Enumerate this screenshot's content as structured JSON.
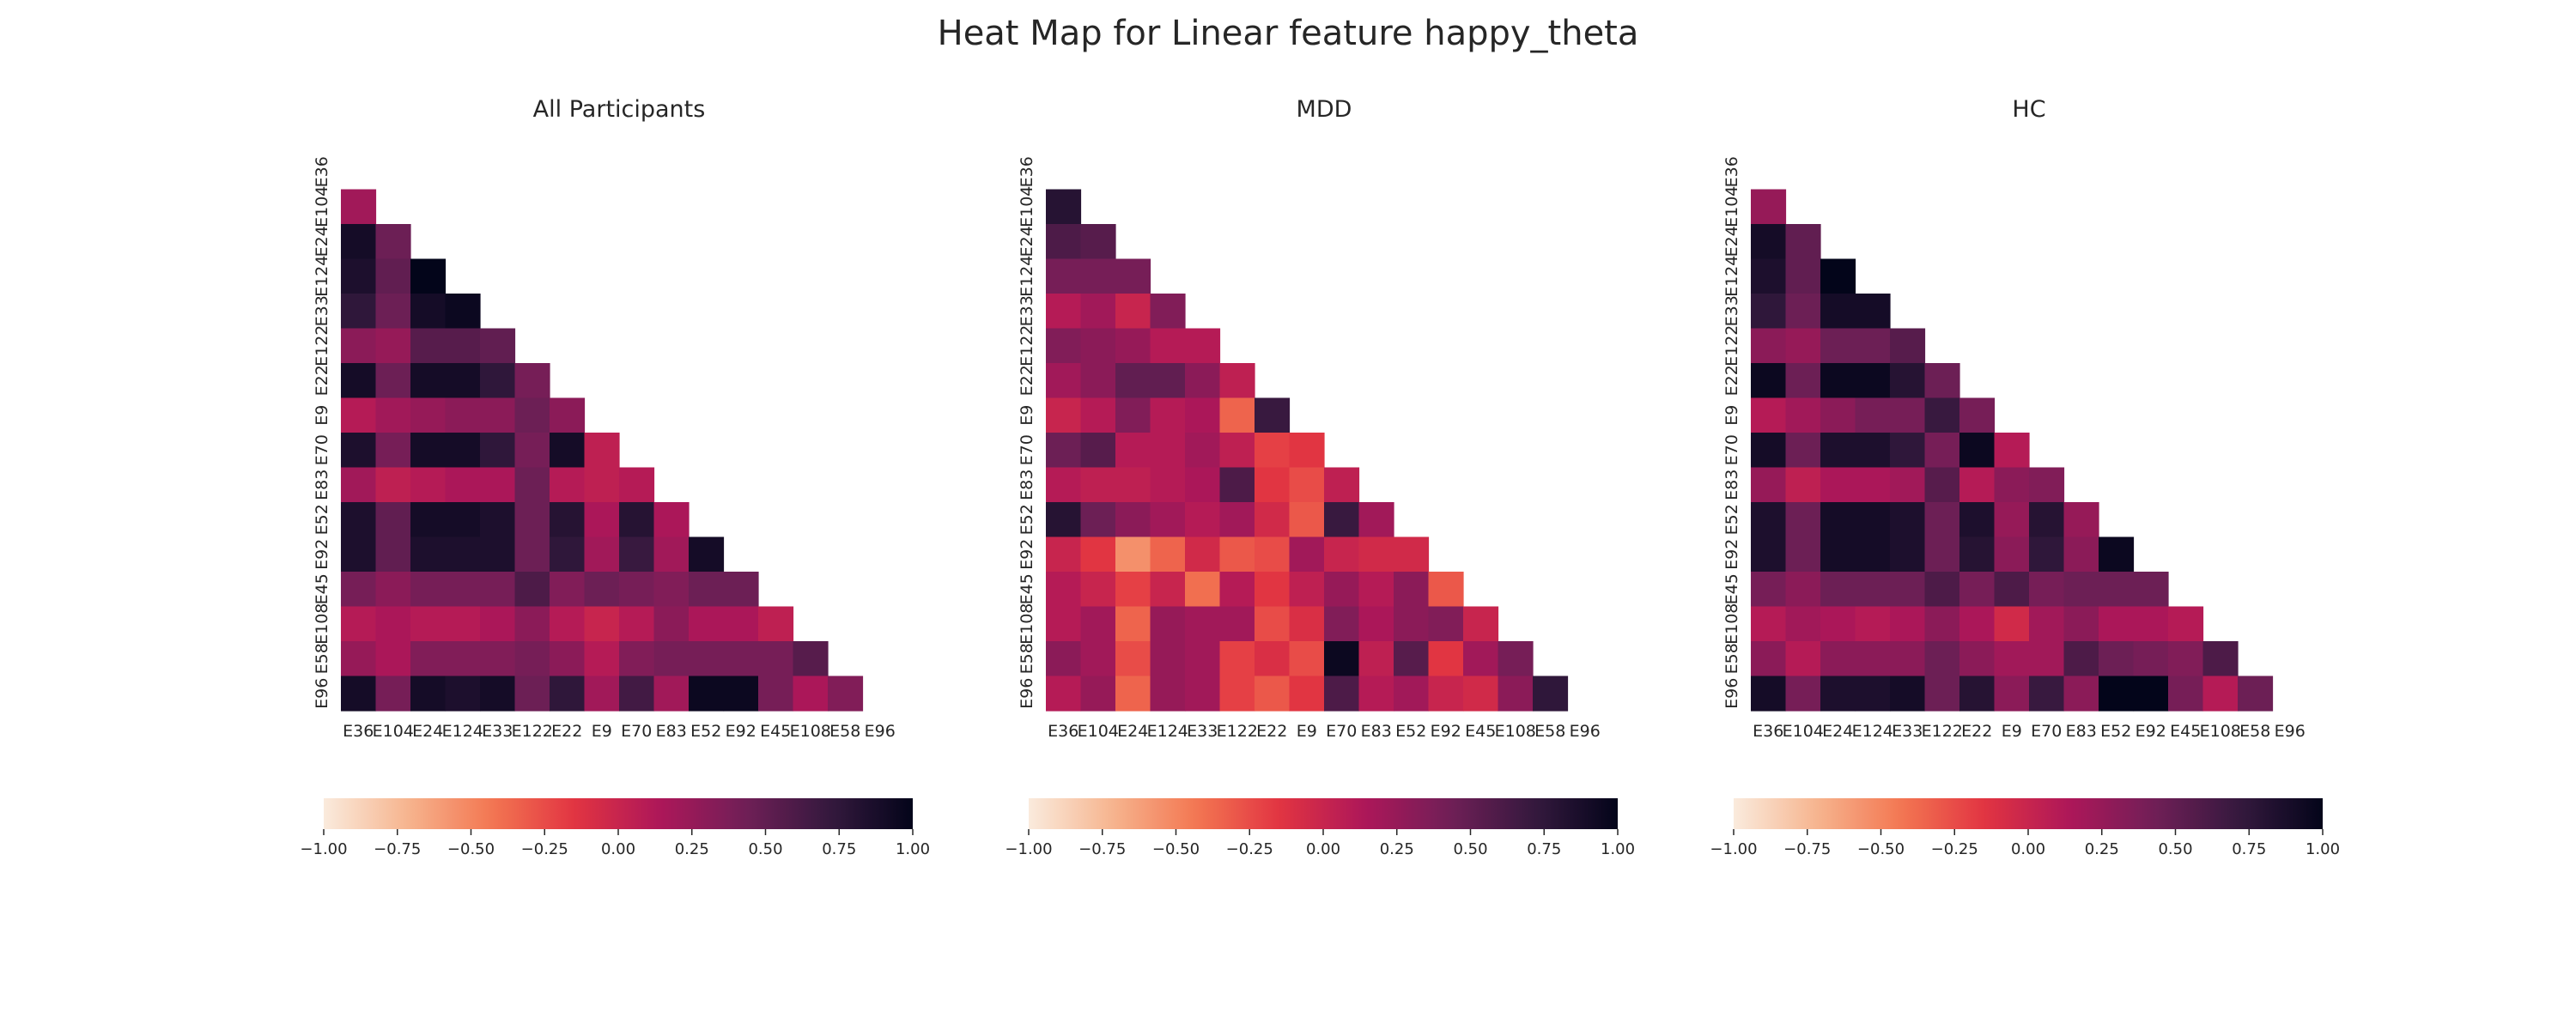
{
  "title": "Heat Map for Linear feature happy_theta",
  "colormap": {
    "name": "rocket_r",
    "stops": [
      "#faebdd",
      "#f6b48e",
      "#f37651",
      "#e13342",
      "#ad1759",
      "#701f57",
      "#35193e",
      "#03051a"
    ]
  },
  "chart_data": [
    {
      "type": "heatmap",
      "title": "All Participants",
      "labels": [
        "E36",
        "E104",
        "E24",
        "E124",
        "E33",
        "E122",
        "E22",
        "E9",
        "E70",
        "E83",
        "E52",
        "E92",
        "E45",
        "E108",
        "E58",
        "E96"
      ],
      "colorbar": {
        "vmin": -1,
        "vmax": 1,
        "ticks": [
          "−1.00",
          "−0.75",
          "−0.50",
          "−0.25",
          "0.00",
          "0.25",
          "0.50",
          "0.75",
          "1.00"
        ]
      },
      "matrix": [
        [],
        [
          0.2
        ],
        [
          0.9,
          0.45
        ],
        [
          0.85,
          0.5,
          1.0
        ],
        [
          0.75,
          0.45,
          0.9,
          0.95
        ],
        [
          0.3,
          0.25,
          0.55,
          0.55,
          0.5
        ],
        [
          0.9,
          0.45,
          0.9,
          0.9,
          0.75,
          0.4
        ],
        [
          0.1,
          0.2,
          0.25,
          0.3,
          0.3,
          0.45,
          0.3
        ],
        [
          0.85,
          0.4,
          0.9,
          0.9,
          0.75,
          0.4,
          0.9,
          0.05
        ],
        [
          0.2,
          0.05,
          0.1,
          0.15,
          0.15,
          0.45,
          0.1,
          0.05,
          0.1
        ],
        [
          0.85,
          0.5,
          0.9,
          0.9,
          0.85,
          0.45,
          0.8,
          0.15,
          0.8,
          0.15
        ],
        [
          0.85,
          0.5,
          0.85,
          0.85,
          0.85,
          0.45,
          0.75,
          0.2,
          0.7,
          0.2,
          0.9
        ],
        [
          0.4,
          0.3,
          0.4,
          0.4,
          0.4,
          0.6,
          0.35,
          0.45,
          0.4,
          0.35,
          0.45,
          0.45
        ],
        [
          0.1,
          0.15,
          0.1,
          0.1,
          0.15,
          0.3,
          0.1,
          0.0,
          0.1,
          0.3,
          0.15,
          0.15,
          0.05
        ],
        [
          0.25,
          0.15,
          0.35,
          0.35,
          0.35,
          0.4,
          0.3,
          0.1,
          0.35,
          0.4,
          0.4,
          0.4,
          0.4,
          0.55
        ],
        [
          0.9,
          0.4,
          0.9,
          0.85,
          0.9,
          0.45,
          0.75,
          0.2,
          0.65,
          0.2,
          0.95,
          0.95,
          0.4,
          0.15,
          0.35
        ]
      ]
    },
    {
      "type": "heatmap",
      "title": "MDD",
      "labels": [
        "E36",
        "E104",
        "E24",
        "E124",
        "E33",
        "E122",
        "E22",
        "E9",
        "E70",
        "E83",
        "E52",
        "E92",
        "E45",
        "E108",
        "E58",
        "E96"
      ],
      "colorbar": {
        "vmin": -1,
        "vmax": 1,
        "ticks": [
          "−1.00",
          "−0.75",
          "−0.50",
          "−0.25",
          "0.00",
          "0.25",
          "0.50",
          "0.75",
          "1.00"
        ]
      },
      "matrix": [
        [],
        [
          0.8
        ],
        [
          0.6,
          0.55
        ],
        [
          0.4,
          0.4,
          0.4
        ],
        [
          0.1,
          0.2,
          0.0,
          0.35
        ],
        [
          0.35,
          0.3,
          0.25,
          0.1,
          0.1
        ],
        [
          0.2,
          0.3,
          0.5,
          0.5,
          0.3,
          0.05
        ],
        [
          0.0,
          0.1,
          0.35,
          0.1,
          0.15,
          -0.35,
          0.7
        ],
        [
          0.45,
          0.55,
          0.1,
          0.1,
          0.2,
          0.05,
          -0.2,
          -0.15
        ],
        [
          0.1,
          0.05,
          0.05,
          0.1,
          0.15,
          0.6,
          -0.15,
          -0.25,
          0.05
        ],
        [
          0.8,
          0.45,
          0.3,
          0.2,
          0.1,
          0.2,
          -0.05,
          -0.3,
          0.7,
          0.2
        ],
        [
          0.0,
          -0.15,
          -0.55,
          -0.35,
          -0.05,
          -0.3,
          -0.25,
          0.2,
          0.0,
          -0.05,
          -0.05
        ],
        [
          0.1,
          0.0,
          -0.2,
          0.0,
          -0.4,
          0.1,
          -0.15,
          0.05,
          0.25,
          0.1,
          0.3,
          -0.3
        ],
        [
          0.1,
          0.2,
          -0.35,
          0.25,
          0.2,
          0.2,
          -0.25,
          -0.1,
          0.35,
          0.15,
          0.3,
          0.35,
          0.0
        ],
        [
          0.3,
          0.2,
          -0.25,
          0.25,
          0.2,
          -0.2,
          -0.1,
          -0.25,
          0.95,
          0.05,
          0.55,
          -0.15,
          0.2,
          0.4
        ],
        [
          0.1,
          0.25,
          -0.35,
          0.25,
          0.2,
          -0.2,
          -0.3,
          -0.15,
          0.6,
          0.1,
          0.2,
          0.0,
          -0.05,
          0.3,
          0.75
        ]
      ]
    },
    {
      "type": "heatmap",
      "title": "HC",
      "labels": [
        "E36",
        "E104",
        "E24",
        "E124",
        "E33",
        "E122",
        "E22",
        "E9",
        "E70",
        "E83",
        "E52",
        "E92",
        "E45",
        "E108",
        "E58",
        "E96"
      ],
      "colorbar": {
        "vmin": -1,
        "vmax": 1,
        "ticks": [
          "−1.00",
          "−0.75",
          "−0.50",
          "−0.25",
          "0.00",
          "0.25",
          "0.50",
          "0.75",
          "1.00"
        ]
      },
      "matrix": [
        [],
        [
          0.25
        ],
        [
          0.9,
          0.5
        ],
        [
          0.85,
          0.5,
          1.0
        ],
        [
          0.75,
          0.45,
          0.9,
          0.9
        ],
        [
          0.3,
          0.25,
          0.45,
          0.45,
          0.55
        ],
        [
          0.95,
          0.45,
          0.95,
          0.95,
          0.8,
          0.45
        ],
        [
          0.1,
          0.2,
          0.3,
          0.4,
          0.4,
          0.7,
          0.4
        ],
        [
          0.9,
          0.45,
          0.85,
          0.85,
          0.75,
          0.4,
          0.95,
          0.1
        ],
        [
          0.25,
          0.05,
          0.15,
          0.15,
          0.2,
          0.55,
          0.1,
          0.3,
          0.35
        ],
        [
          0.85,
          0.45,
          0.9,
          0.9,
          0.85,
          0.45,
          0.85,
          0.25,
          0.8,
          0.25
        ],
        [
          0.85,
          0.45,
          0.9,
          0.9,
          0.85,
          0.45,
          0.8,
          0.3,
          0.75,
          0.3,
          0.95
        ],
        [
          0.4,
          0.3,
          0.45,
          0.45,
          0.45,
          0.6,
          0.4,
          0.6,
          0.4,
          0.45,
          0.45,
          0.45
        ],
        [
          0.1,
          0.2,
          0.15,
          0.1,
          0.15,
          0.3,
          0.15,
          -0.05,
          0.2,
          0.3,
          0.15,
          0.15,
          0.1
        ],
        [
          0.3,
          0.1,
          0.3,
          0.3,
          0.3,
          0.45,
          0.3,
          0.2,
          0.2,
          0.6,
          0.45,
          0.4,
          0.35,
          0.6
        ],
        [
          0.9,
          0.4,
          0.85,
          0.85,
          0.9,
          0.45,
          0.8,
          0.3,
          0.7,
          0.3,
          1.0,
          1.0,
          0.4,
          0.1,
          0.45
        ]
      ]
    }
  ]
}
